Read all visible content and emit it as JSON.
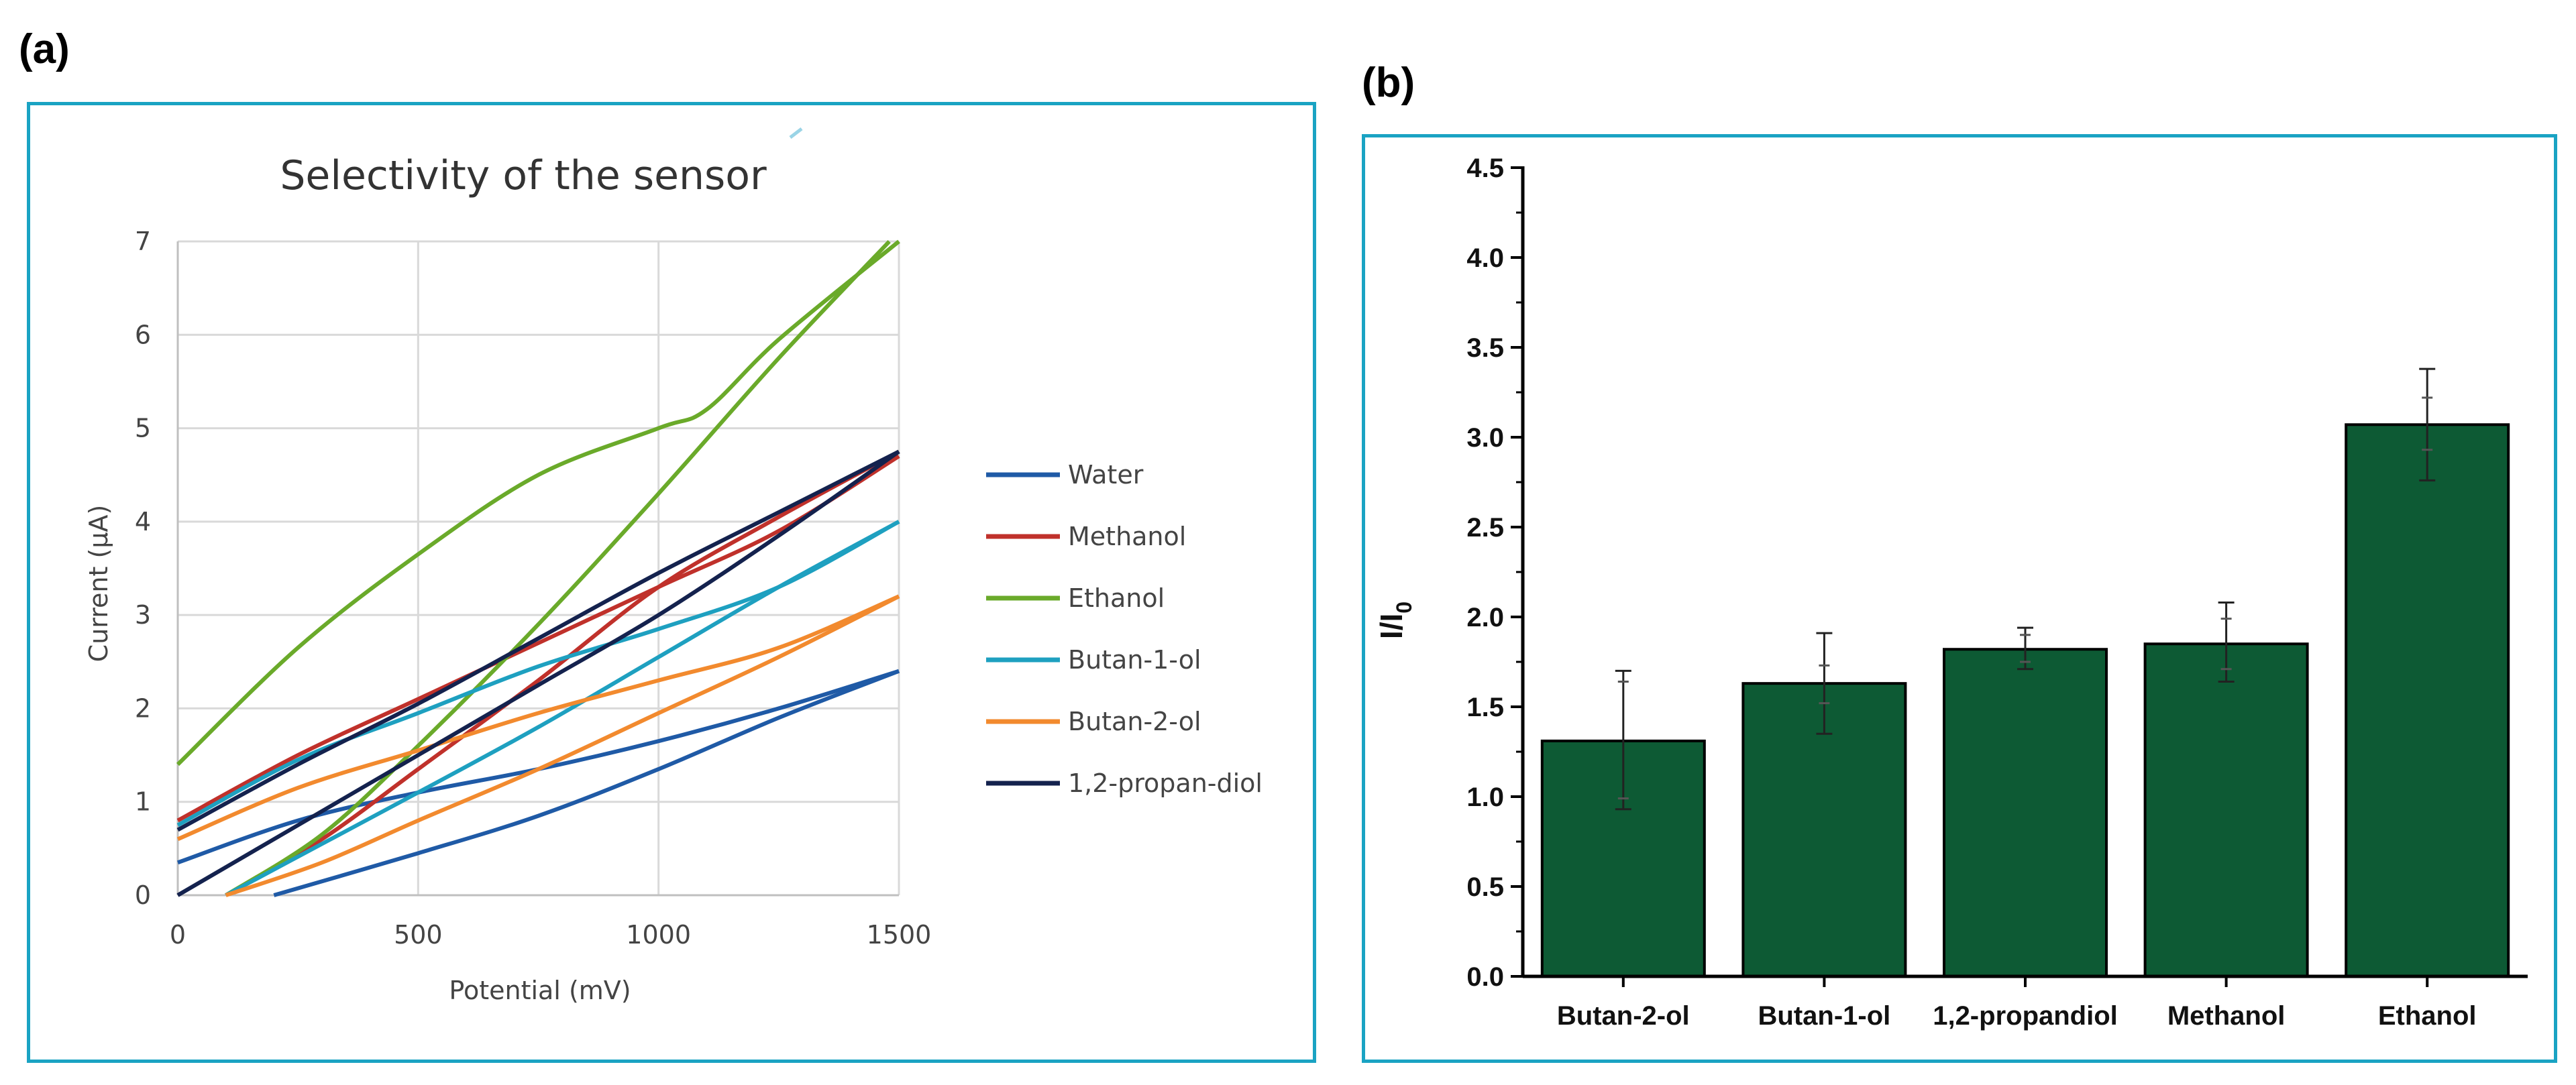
{
  "panels": {
    "a": "(a)",
    "b": "(b)"
  },
  "chart_data": [
    {
      "type": "line",
      "title": "Selectivity of the sensor",
      "xlabel": "Potential (mV)",
      "ylabel": "Current (µA)",
      "xlim": [
        0,
        1500
      ],
      "ylim": [
        0,
        7
      ],
      "xticks": [
        0,
        500,
        1000,
        1500
      ],
      "yticks": [
        0,
        1,
        2,
        3,
        4,
        5,
        6,
        7
      ],
      "grid": true,
      "legend_position": "right",
      "series": [
        {
          "name": "Water",
          "color": "#1f5aa6",
          "forward": [
            [
              0,
              0.35
            ],
            [
              250,
              0.8
            ],
            [
              500,
              1.1
            ],
            [
              750,
              1.35
            ],
            [
              1000,
              1.65
            ],
            [
              1250,
              2.0
            ],
            [
              1500,
              2.4
            ]
          ],
          "reverse": [
            [
              200,
              0
            ],
            [
              500,
              0.45
            ],
            [
              750,
              0.85
            ],
            [
              1000,
              1.35
            ],
            [
              1250,
              1.9
            ],
            [
              1500,
              2.4
            ]
          ]
        },
        {
          "name": "Methanol",
          "color": "#c0312b",
          "forward": [
            [
              0,
              0.8
            ],
            [
              250,
              1.5
            ],
            [
              500,
              2.1
            ],
            [
              750,
              2.7
            ],
            [
              1000,
              3.3
            ],
            [
              1250,
              3.9
            ],
            [
              1500,
              4.7
            ]
          ],
          "reverse": [
            [
              100,
              0
            ],
            [
              300,
              0.6
            ],
            [
              500,
              1.35
            ],
            [
              750,
              2.3
            ],
            [
              1000,
              3.3
            ],
            [
              1250,
              4.05
            ],
            [
              1500,
              4.75
            ]
          ]
        },
        {
          "name": "Ethanol",
          "color": "#6aaa2a",
          "forward": [
            [
              0,
              1.4
            ],
            [
              250,
              2.65
            ],
            [
              500,
              3.65
            ],
            [
              750,
              4.5
            ],
            [
              1000,
              5.0
            ],
            [
              1100,
              5.2
            ],
            [
              1250,
              5.95
            ],
            [
              1500,
              7.0
            ]
          ],
          "reverse": [
            [
              100,
              0
            ],
            [
              300,
              0.65
            ],
            [
              500,
              1.6
            ],
            [
              750,
              2.9
            ],
            [
              1000,
              4.3
            ],
            [
              1250,
              5.75
            ],
            [
              1480,
              7.0
            ]
          ]
        },
        {
          "name": "Butan-1-ol",
          "color": "#1ea0c0",
          "forward": [
            [
              0,
              0.75
            ],
            [
              250,
              1.45
            ],
            [
              500,
              1.95
            ],
            [
              750,
              2.45
            ],
            [
              1000,
              2.85
            ],
            [
              1250,
              3.3
            ],
            [
              1500,
              4.0
            ]
          ],
          "reverse": [
            [
              100,
              0
            ],
            [
              300,
              0.55
            ],
            [
              500,
              1.1
            ],
            [
              750,
              1.8
            ],
            [
              1000,
              2.55
            ],
            [
              1250,
              3.3
            ],
            [
              1500,
              4.0
            ]
          ]
        },
        {
          "name": "Butan-2-ol",
          "color": "#f28a2e",
          "forward": [
            [
              0,
              0.6
            ],
            [
              250,
              1.15
            ],
            [
              500,
              1.55
            ],
            [
              750,
              1.95
            ],
            [
              1000,
              2.3
            ],
            [
              1250,
              2.65
            ],
            [
              1500,
              3.2
            ]
          ],
          "reverse": [
            [
              100,
              0
            ],
            [
              300,
              0.35
            ],
            [
              500,
              0.8
            ],
            [
              750,
              1.35
            ],
            [
              1000,
              1.95
            ],
            [
              1250,
              2.55
            ],
            [
              1500,
              3.2
            ]
          ]
        },
        {
          "name": "1,2-propan-diol",
          "color": "#14224e",
          "forward": [
            [
              0,
              0.7
            ],
            [
              250,
              1.4
            ],
            [
              500,
              2.05
            ],
            [
              750,
              2.75
            ],
            [
              1000,
              3.45
            ],
            [
              1250,
              4.1
            ],
            [
              1500,
              4.75
            ]
          ],
          "reverse": [
            [
              0,
              0
            ],
            [
              250,
              0.75
            ],
            [
              500,
              1.5
            ],
            [
              750,
              2.25
            ],
            [
              1000,
              3.0
            ],
            [
              1250,
              3.85
            ],
            [
              1500,
              4.75
            ]
          ]
        }
      ]
    },
    {
      "type": "bar",
      "title": "",
      "xlabel": "",
      "ylabel": "I/I",
      "ylabel_subscript": "0",
      "ylim": [
        0,
        4.5
      ],
      "yticks": [
        "0.0",
        "0.5",
        "1.0",
        "1.5",
        "2.0",
        "2.5",
        "3.0",
        "3.5",
        "4.0",
        "4.5"
      ],
      "bar_color": "#0d5a34",
      "categories": [
        "Butan-2-ol",
        "Butan-1-ol",
        "1,2-propandiol",
        "Methanol",
        "Ethanol"
      ],
      "values": [
        1.31,
        1.63,
        1.82,
        1.85,
        3.07
      ],
      "error_outer": [
        [
          0.93,
          1.7
        ],
        [
          1.35,
          1.91
        ],
        [
          1.71,
          1.94
        ],
        [
          1.64,
          2.08
        ],
        [
          2.76,
          3.38
        ]
      ],
      "error_inner": [
        [
          0.99,
          1.64
        ],
        [
          1.52,
          1.73
        ],
        [
          1.75,
          1.9
        ],
        [
          1.71,
          1.99
        ],
        [
          2.93,
          3.22
        ]
      ]
    }
  ]
}
